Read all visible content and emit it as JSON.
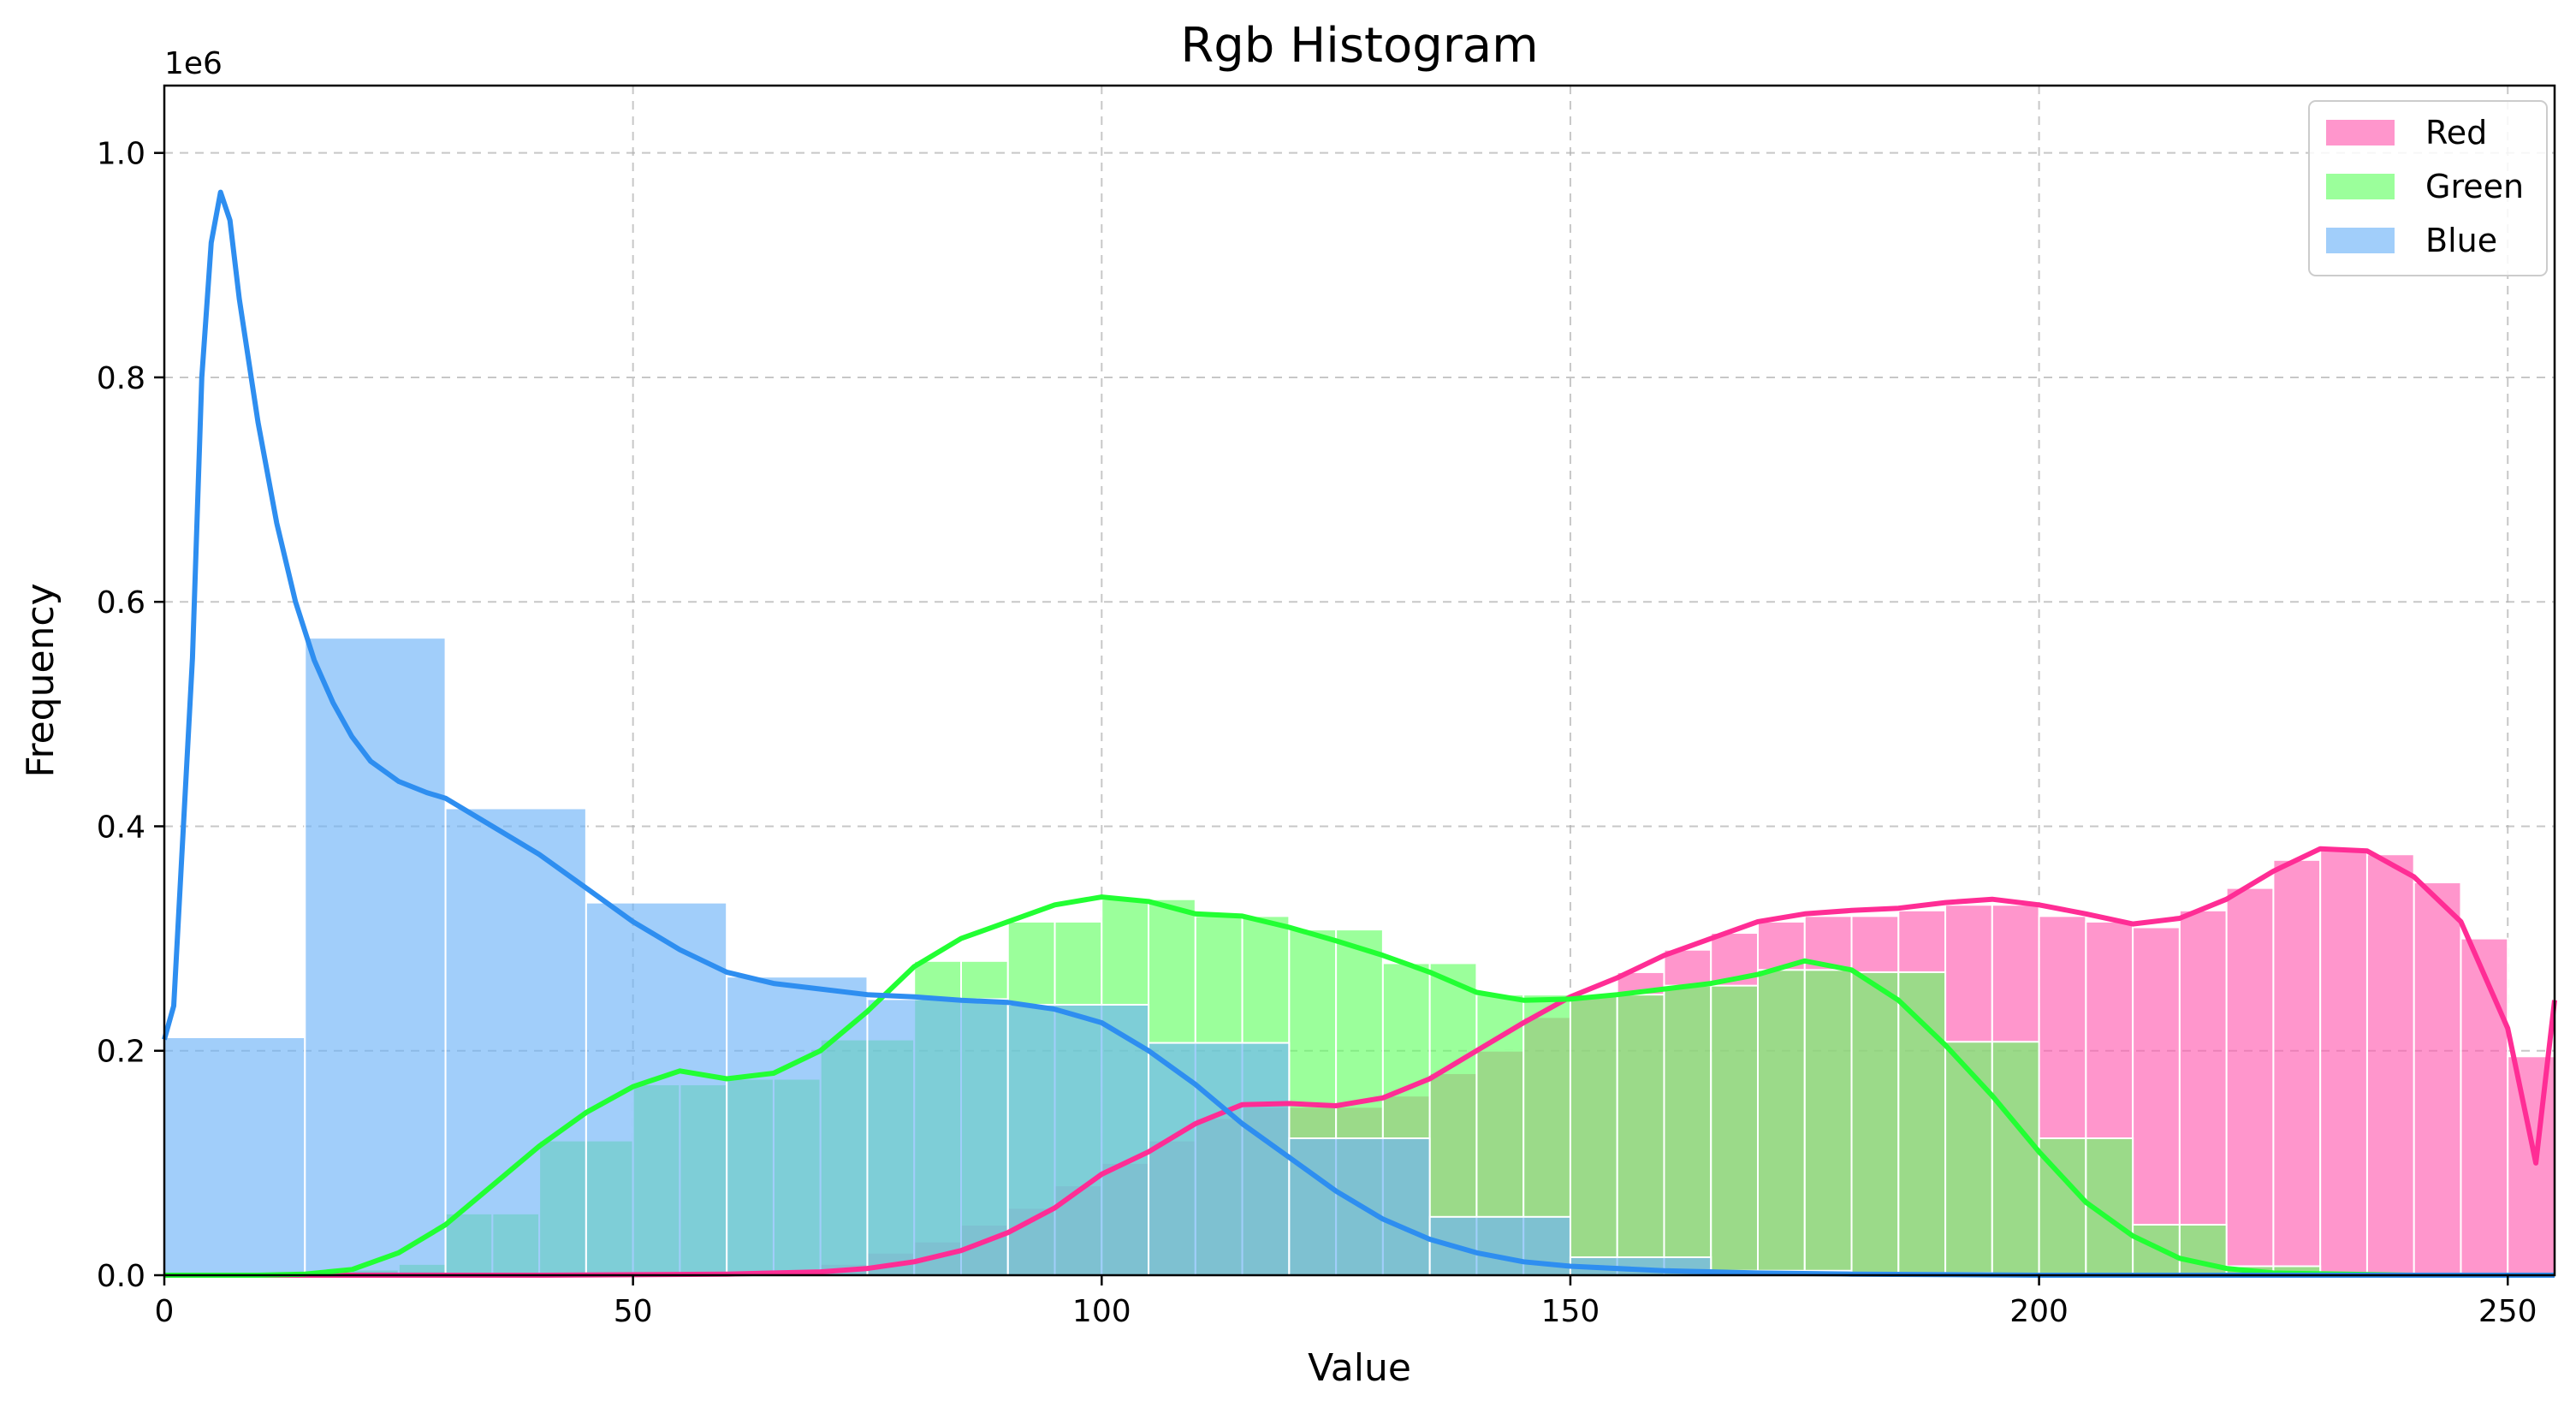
{
  "chart_data": {
    "type": "bar",
    "title": "Rgb Histogram",
    "xlabel": "Value",
    "ylabel": "Frequency",
    "y_scale_label": "1e6",
    "xlim": [
      0,
      255
    ],
    "ylim": [
      0,
      1.06
    ],
    "x_ticks": [
      0,
      50,
      100,
      150,
      200,
      250
    ],
    "y_ticks": [
      0.0,
      0.2,
      0.4,
      0.6,
      0.8,
      1.0
    ],
    "x_tick_labels": [
      "0",
      "50",
      "100",
      "150",
      "200",
      "250"
    ],
    "y_tick_labels": [
      "0.0",
      "0.2",
      "0.4",
      "0.6",
      "0.8",
      "1.0"
    ],
    "grid": true,
    "legend_position": "top-right",
    "colors": {
      "Red": {
        "bar": "#ff5eb0",
        "line": "#ff2d95"
      },
      "Green": {
        "bar": "#66ff66",
        "line": "#22ff33"
      },
      "Blue": {
        "bar": "#6fb3f7",
        "line": "#2e8ef0"
      }
    },
    "series": [
      {
        "name": "Red",
        "bins": [
          [
            15,
            20,
            0.004
          ],
          [
            20,
            25,
            0.004
          ],
          [
            25,
            30,
            0.004
          ],
          [
            45,
            50,
            0.002
          ],
          [
            60,
            65,
            0.002
          ],
          [
            70,
            75,
            0.01
          ],
          [
            75,
            80,
            0.02
          ],
          [
            80,
            85,
            0.03
          ],
          [
            85,
            90,
            0.045
          ],
          [
            90,
            95,
            0.06
          ],
          [
            95,
            100,
            0.08
          ],
          [
            100,
            105,
            0.1
          ],
          [
            105,
            110,
            0.12
          ],
          [
            110,
            115,
            0.14
          ],
          [
            115,
            120,
            0.15
          ],
          [
            120,
            125,
            0.15
          ],
          [
            125,
            130,
            0.15
          ],
          [
            130,
            135,
            0.16
          ],
          [
            135,
            140,
            0.18
          ],
          [
            140,
            145,
            0.2
          ],
          [
            145,
            150,
            0.23
          ],
          [
            150,
            155,
            0.25
          ],
          [
            155,
            160,
            0.27
          ],
          [
            160,
            165,
            0.29
          ],
          [
            165,
            170,
            0.305
          ],
          [
            170,
            175,
            0.315
          ],
          [
            175,
            180,
            0.32
          ],
          [
            180,
            185,
            0.32
          ],
          [
            185,
            190,
            0.325
          ],
          [
            190,
            195,
            0.33
          ],
          [
            195,
            200,
            0.33
          ],
          [
            200,
            205,
            0.32
          ],
          [
            205,
            210,
            0.315
          ],
          [
            210,
            215,
            0.31
          ],
          [
            215,
            220,
            0.325
          ],
          [
            220,
            225,
            0.345
          ],
          [
            225,
            230,
            0.37
          ],
          [
            230,
            235,
            0.38
          ],
          [
            235,
            240,
            0.375
          ],
          [
            240,
            245,
            0.35
          ],
          [
            245,
            250,
            0.3
          ],
          [
            250,
            255,
            0.195
          ]
        ],
        "kde": [
          [
            0,
            0.0
          ],
          [
            20,
            0.0
          ],
          [
            40,
            0.0
          ],
          [
            60,
            0.001
          ],
          [
            70,
            0.003
          ],
          [
            75,
            0.006
          ],
          [
            80,
            0.012
          ],
          [
            85,
            0.022
          ],
          [
            90,
            0.038
          ],
          [
            95,
            0.06
          ],
          [
            100,
            0.09
          ],
          [
            105,
            0.11
          ],
          [
            110,
            0.135
          ],
          [
            115,
            0.152
          ],
          [
            120,
            0.153
          ],
          [
            125,
            0.151
          ],
          [
            130,
            0.158
          ],
          [
            135,
            0.175
          ],
          [
            140,
            0.2
          ],
          [
            145,
            0.225
          ],
          [
            150,
            0.248
          ],
          [
            155,
            0.265
          ],
          [
            160,
            0.285
          ],
          [
            165,
            0.3
          ],
          [
            170,
            0.315
          ],
          [
            175,
            0.322
          ],
          [
            180,
            0.325
          ],
          [
            185,
            0.327
          ],
          [
            190,
            0.332
          ],
          [
            195,
            0.335
          ],
          [
            200,
            0.33
          ],
          [
            205,
            0.322
          ],
          [
            210,
            0.313
          ],
          [
            215,
            0.318
          ],
          [
            220,
            0.335
          ],
          [
            225,
            0.36
          ],
          [
            230,
            0.38
          ],
          [
            235,
            0.378
          ],
          [
            240,
            0.355
          ],
          [
            245,
            0.315
          ],
          [
            250,
            0.22
          ],
          [
            253,
            0.1
          ],
          [
            255,
            0.245
          ]
        ]
      },
      {
        "name": "Green",
        "bins": [
          [
            15,
            20,
            0.002
          ],
          [
            20,
            25,
            0.005
          ],
          [
            25,
            30,
            0.01
          ],
          [
            30,
            35,
            0.055
          ],
          [
            35,
            40,
            0.055
          ],
          [
            40,
            45,
            0.12
          ],
          [
            45,
            50,
            0.12
          ],
          [
            50,
            55,
            0.17
          ],
          [
            55,
            60,
            0.17
          ],
          [
            60,
            65,
            0.175
          ],
          [
            65,
            70,
            0.175
          ],
          [
            70,
            75,
            0.21
          ],
          [
            75,
            80,
            0.21
          ],
          [
            80,
            85,
            0.28
          ],
          [
            85,
            90,
            0.28
          ],
          [
            90,
            95,
            0.315
          ],
          [
            95,
            100,
            0.315
          ],
          [
            100,
            105,
            0.335
          ],
          [
            105,
            110,
            0.335
          ],
          [
            110,
            115,
            0.32
          ],
          [
            115,
            120,
            0.32
          ],
          [
            120,
            125,
            0.308
          ],
          [
            125,
            130,
            0.308
          ],
          [
            130,
            135,
            0.278
          ],
          [
            135,
            140,
            0.278
          ],
          [
            140,
            145,
            0.25
          ],
          [
            145,
            150,
            0.25
          ],
          [
            150,
            155,
            0.25
          ],
          [
            155,
            160,
            0.25
          ],
          [
            160,
            165,
            0.258
          ],
          [
            165,
            170,
            0.258
          ],
          [
            170,
            175,
            0.272
          ],
          [
            175,
            180,
            0.272
          ],
          [
            180,
            185,
            0.27
          ],
          [
            185,
            190,
            0.27
          ],
          [
            190,
            195,
            0.208
          ],
          [
            195,
            200,
            0.208
          ],
          [
            200,
            205,
            0.122
          ],
          [
            205,
            210,
            0.122
          ],
          [
            210,
            215,
            0.045
          ],
          [
            215,
            220,
            0.045
          ],
          [
            220,
            225,
            0.008
          ],
          [
            225,
            230,
            0.008
          ]
        ],
        "kde": [
          [
            0,
            0.0
          ],
          [
            10,
            0.0
          ],
          [
            15,
            0.001
          ],
          [
            20,
            0.005
          ],
          [
            25,
            0.02
          ],
          [
            30,
            0.045
          ],
          [
            35,
            0.08
          ],
          [
            40,
            0.115
          ],
          [
            45,
            0.145
          ],
          [
            50,
            0.168
          ],
          [
            55,
            0.182
          ],
          [
            60,
            0.175
          ],
          [
            65,
            0.18
          ],
          [
            70,
            0.2
          ],
          [
            75,
            0.235
          ],
          [
            80,
            0.275
          ],
          [
            85,
            0.3
          ],
          [
            90,
            0.315
          ],
          [
            95,
            0.33
          ],
          [
            100,
            0.337
          ],
          [
            105,
            0.333
          ],
          [
            110,
            0.322
          ],
          [
            115,
            0.32
          ],
          [
            120,
            0.31
          ],
          [
            125,
            0.298
          ],
          [
            130,
            0.285
          ],
          [
            135,
            0.27
          ],
          [
            140,
            0.252
          ],
          [
            145,
            0.245
          ],
          [
            150,
            0.246
          ],
          [
            155,
            0.25
          ],
          [
            160,
            0.255
          ],
          [
            165,
            0.26
          ],
          [
            170,
            0.268
          ],
          [
            175,
            0.28
          ],
          [
            180,
            0.272
          ],
          [
            185,
            0.245
          ],
          [
            190,
            0.205
          ],
          [
            195,
            0.16
          ],
          [
            200,
            0.11
          ],
          [
            205,
            0.065
          ],
          [
            210,
            0.035
          ],
          [
            215,
            0.015
          ],
          [
            220,
            0.006
          ],
          [
            225,
            0.002
          ],
          [
            240,
            0.0
          ],
          [
            255,
            0.0
          ]
        ]
      },
      {
        "name": "Blue",
        "bins": [
          [
            0,
            15,
            0.212
          ],
          [
            15,
            30,
            0.568
          ],
          [
            30,
            45,
            0.416
          ],
          [
            45,
            60,
            0.332
          ],
          [
            60,
            75,
            0.266
          ],
          [
            75,
            90,
            0.246
          ],
          [
            90,
            105,
            0.241
          ],
          [
            105,
            120,
            0.207
          ],
          [
            120,
            135,
            0.122
          ],
          [
            135,
            150,
            0.052
          ],
          [
            150,
            165,
            0.016
          ],
          [
            165,
            180,
            0.004
          ],
          [
            180,
            195,
            0.002
          ],
          [
            195,
            210,
            0.001
          ],
          [
            210,
            225,
            0.001
          ],
          [
            225,
            240,
            0.001
          ],
          [
            240,
            255,
            0.001
          ]
        ],
        "kde": [
          [
            0,
            0.21
          ],
          [
            1,
            0.24
          ],
          [
            3,
            0.55
          ],
          [
            4,
            0.8
          ],
          [
            5,
            0.92
          ],
          [
            6,
            0.965
          ],
          [
            7,
            0.94
          ],
          [
            8,
            0.87
          ],
          [
            10,
            0.76
          ],
          [
            12,
            0.67
          ],
          [
            14,
            0.6
          ],
          [
            16,
            0.548
          ],
          [
            18,
            0.51
          ],
          [
            20,
            0.48
          ],
          [
            22,
            0.458
          ],
          [
            25,
            0.44
          ],
          [
            28,
            0.43
          ],
          [
            30,
            0.425
          ],
          [
            35,
            0.4
          ],
          [
            40,
            0.375
          ],
          [
            45,
            0.345
          ],
          [
            50,
            0.315
          ],
          [
            55,
            0.29
          ],
          [
            60,
            0.27
          ],
          [
            65,
            0.26
          ],
          [
            70,
            0.255
          ],
          [
            75,
            0.25
          ],
          [
            80,
            0.248
          ],
          [
            85,
            0.245
          ],
          [
            90,
            0.243
          ],
          [
            95,
            0.237
          ],
          [
            100,
            0.225
          ],
          [
            105,
            0.2
          ],
          [
            110,
            0.17
          ],
          [
            115,
            0.135
          ],
          [
            120,
            0.105
          ],
          [
            125,
            0.075
          ],
          [
            130,
            0.05
          ],
          [
            135,
            0.032
          ],
          [
            140,
            0.02
          ],
          [
            145,
            0.012
          ],
          [
            150,
            0.008
          ],
          [
            160,
            0.004
          ],
          [
            170,
            0.002
          ],
          [
            180,
            0.001
          ],
          [
            200,
            0.0
          ],
          [
            255,
            0.0
          ]
        ]
      }
    ]
  }
}
